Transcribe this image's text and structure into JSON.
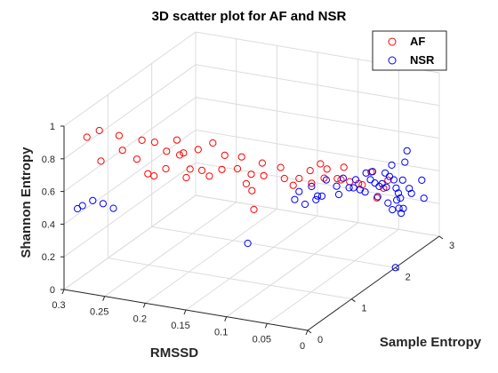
{
  "chart_data": {
    "type": "scatter3d",
    "title": "3D scatter plot for AF and NSR",
    "xlabel": "Sample Entropy",
    "ylabel": "RMSSD",
    "zlabel": "Shannon Entropy",
    "xlim": [
      0,
      3
    ],
    "ylim": [
      0,
      0.3
    ],
    "zlim": [
      0,
      1
    ],
    "xticks": [
      "0",
      "1",
      "2",
      "3"
    ],
    "yticks": [
      "0",
      "0.05",
      "0.1",
      "0.15",
      "0.2",
      "0.25",
      "0.3"
    ],
    "zticks": [
      "0",
      "0.2",
      "0.4",
      "0.6",
      "0.8",
      "1"
    ],
    "grid": true,
    "legend_position": "top-right",
    "marker": "open-circle",
    "series": [
      {
        "name": "AF",
        "color": "#ff0000",
        "points": [
          [
            0.1,
            0.18,
            0.82
          ],
          [
            0.28,
            0.16,
            0.8
          ],
          [
            0.06,
            0.2,
            0.78
          ],
          [
            0.18,
            0.22,
            0.83
          ],
          [
            0.35,
            0.14,
            0.76
          ],
          [
            0.45,
            0.13,
            0.79
          ],
          [
            0.22,
            0.24,
            0.86
          ],
          [
            0.1,
            0.26,
            0.8
          ],
          [
            0.3,
            0.19,
            0.88
          ],
          [
            0.5,
            0.18,
            0.84
          ],
          [
            0.4,
            0.21,
            0.9
          ],
          [
            0.55,
            0.16,
            0.74
          ],
          [
            0.62,
            0.12,
            0.77
          ],
          [
            0.7,
            0.14,
            0.82
          ],
          [
            0.8,
            0.16,
            0.86
          ],
          [
            0.15,
            0.28,
            0.92
          ],
          [
            0.25,
            0.27,
            0.95
          ],
          [
            0.6,
            0.19,
            0.8
          ],
          [
            0.75,
            0.11,
            0.72
          ],
          [
            0.85,
            0.1,
            0.7
          ],
          [
            0.9,
            0.13,
            0.78
          ],
          [
            0.95,
            0.08,
            0.68
          ],
          [
            1.05,
            0.09,
            0.72
          ],
          [
            1.1,
            0.07,
            0.66
          ],
          [
            1.2,
            0.06,
            0.62
          ],
          [
            1.3,
            0.05,
            0.64
          ],
          [
            1.4,
            0.06,
            0.7
          ],
          [
            1.5,
            0.04,
            0.6
          ],
          [
            1.6,
            0.05,
            0.58
          ],
          [
            1.7,
            0.04,
            0.55
          ],
          [
            1.8,
            0.03,
            0.52
          ],
          [
            1.9,
            0.04,
            0.5
          ],
          [
            2.0,
            0.03,
            0.56
          ],
          [
            1.0,
            0.11,
            0.74
          ],
          [
            0.65,
            0.17,
            0.84
          ],
          [
            0.48,
            0.23,
            0.88
          ],
          [
            0.33,
            0.25,
            0.92
          ],
          [
            0.72,
            0.2,
            0.86
          ],
          [
            0.58,
            0.1,
            0.66
          ],
          [
            0.44,
            0.09,
            0.58
          ],
          [
            1.15,
            0.08,
            0.6
          ],
          [
            1.35,
            0.07,
            0.66
          ],
          [
            1.55,
            0.06,
            0.64
          ],
          [
            1.75,
            0.05,
            0.62
          ],
          [
            2.1,
            0.02,
            0.45
          ],
          [
            1.95,
            0.02,
            0.42
          ],
          [
            2.2,
            0.02,
            0.48
          ],
          [
            0.2,
            0.2,
            0.74
          ],
          [
            0.38,
            0.17,
            0.72
          ],
          [
            0.82,
            0.12,
            0.64
          ]
        ]
      },
      {
        "name": "NSR",
        "color": "#0000ff",
        "points": [
          [
            0.05,
            0.28,
            0.52
          ],
          [
            0.1,
            0.27,
            0.55
          ],
          [
            0.15,
            0.26,
            0.53
          ],
          [
            0.12,
            0.29,
            0.48
          ],
          [
            0.2,
            0.25,
            0.5
          ],
          [
            0.3,
            0.09,
            0.4
          ],
          [
            1.0,
            0.07,
            0.55
          ],
          [
            1.05,
            0.06,
            0.52
          ],
          [
            1.1,
            0.07,
            0.58
          ],
          [
            1.15,
            0.05,
            0.56
          ],
          [
            1.2,
            0.06,
            0.6
          ],
          [
            1.25,
            0.05,
            0.54
          ],
          [
            1.3,
            0.06,
            0.5
          ],
          [
            1.35,
            0.05,
            0.62
          ],
          [
            1.4,
            0.04,
            0.58
          ],
          [
            1.45,
            0.04,
            0.52
          ],
          [
            1.5,
            0.03,
            0.56
          ],
          [
            1.55,
            0.04,
            0.6
          ],
          [
            1.6,
            0.03,
            0.54
          ],
          [
            1.65,
            0.03,
            0.58
          ],
          [
            1.7,
            0.02,
            0.62
          ],
          [
            1.75,
            0.03,
            0.5
          ],
          [
            1.8,
            0.02,
            0.56
          ],
          [
            1.85,
            0.02,
            0.6
          ],
          [
            1.9,
            0.02,
            0.52
          ],
          [
            1.95,
            0.01,
            0.58
          ],
          [
            2.0,
            0.02,
            0.48
          ],
          [
            2.05,
            0.01,
            0.54
          ],
          [
            2.1,
            0.01,
            0.6
          ],
          [
            2.15,
            0.01,
            0.5
          ],
          [
            2.2,
            0.01,
            0.44
          ],
          [
            2.25,
            0.01,
            0.4
          ],
          [
            2.3,
            0.01,
            0.36
          ],
          [
            2.35,
            0.01,
            0.46
          ],
          [
            2.4,
            0.01,
            0.56
          ],
          [
            2.45,
            0.01,
            0.62
          ],
          [
            2.5,
            0.01,
            0.38
          ],
          [
            2.55,
            0.01,
            0.34
          ],
          [
            2.6,
            0.0,
            0.42
          ],
          [
            2.65,
            0.0,
            0.3
          ],
          [
            2.2,
            0.02,
            0.34
          ],
          [
            2.3,
            0.02,
            0.28
          ],
          [
            2.4,
            0.02,
            0.32
          ],
          [
            2.35,
            0.03,
            0.4
          ],
          [
            2.25,
            0.03,
            0.44
          ],
          [
            2.15,
            0.03,
            0.38
          ],
          [
            2.05,
            0.04,
            0.42
          ],
          [
            2.45,
            0.02,
            0.26
          ],
          [
            2.5,
            0.02,
            0.22
          ],
          [
            2.55,
            0.02,
            0.24
          ],
          [
            2.0,
            0.0,
            0.0
          ]
        ]
      }
    ]
  }
}
